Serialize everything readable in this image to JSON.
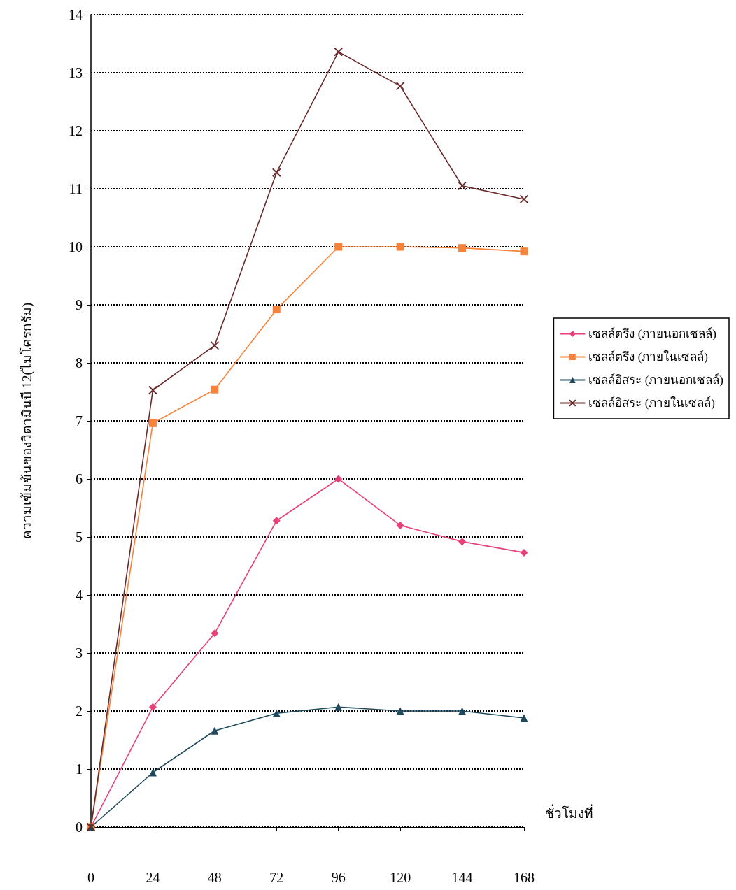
{
  "chart_data": {
    "type": "line",
    "xlabel": "ชั่วโมงที่",
    "ylabel": "ความเข้มข้นของวิตามินบี 12(ไมโครกรัม)",
    "x": [
      0,
      24,
      48,
      72,
      96,
      120,
      144,
      168
    ],
    "xlim": [
      0,
      168
    ],
    "xticks": [
      0,
      24,
      48,
      72,
      96,
      120,
      144,
      168
    ],
    "ylim": [
      0,
      14
    ],
    "yticks": [
      0,
      1,
      2,
      3,
      4,
      5,
      6,
      7,
      8,
      9,
      10,
      11,
      12,
      13,
      14
    ],
    "grid": "y",
    "legend": "right",
    "series": [
      {
        "name": "เซลล์ตรึง (ภายนอกเซลล์)",
        "color": "#e8407a",
        "marker": "diamond",
        "values": [
          0,
          2.07,
          3.34,
          5.28,
          6.0,
          5.2,
          4.92,
          4.73
        ]
      },
      {
        "name": "เซลล์ตรึง (ภายในเซลล์)",
        "color": "#f7823a",
        "marker": "square",
        "values": [
          0,
          6.96,
          7.54,
          8.92,
          10.0,
          10.0,
          9.98,
          9.92
        ]
      },
      {
        "name": "เซลล์อิสระ (ภายนอกเซลล์)",
        "color": "#1f4a5e",
        "marker": "triangle",
        "values": [
          0,
          0.94,
          1.66,
          1.96,
          2.07,
          2.0,
          2.0,
          1.88
        ]
      },
      {
        "name": "เซลล์อิสระ (ภายในเซลล์)",
        "color": "#6b2a2a",
        "marker": "cross",
        "values": [
          0,
          7.53,
          8.3,
          11.28,
          13.36,
          12.77,
          11.05,
          10.82
        ]
      }
    ]
  }
}
